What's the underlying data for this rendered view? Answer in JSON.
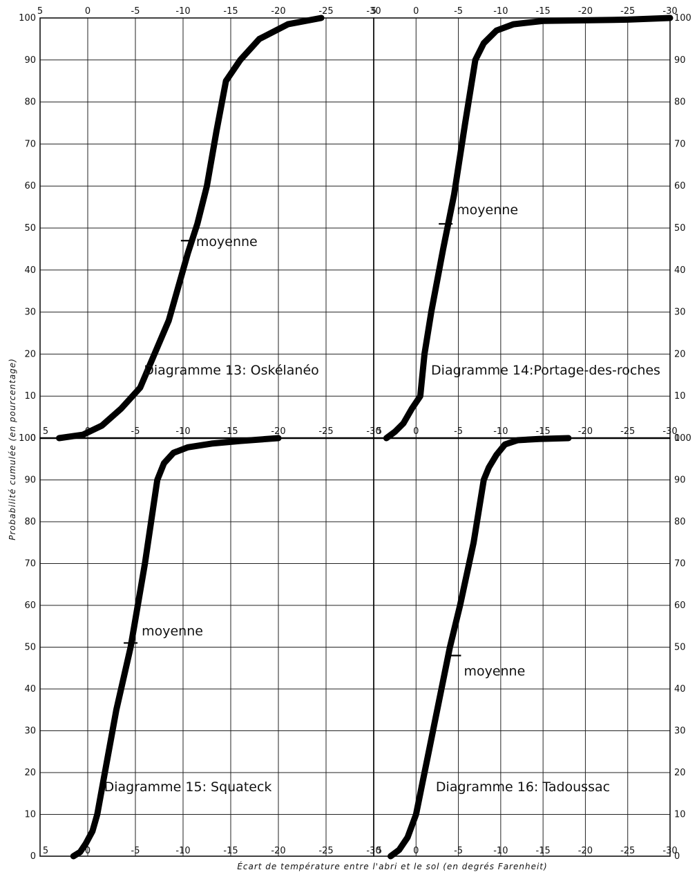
{
  "axis_labels": {
    "y": "Probabilité cumulée (en pourcentage)",
    "x": "Écart de température entre l'abri et le sol (en degrés Farenheit)"
  },
  "chart_data": [
    {
      "type": "line",
      "title": "Diagramme 13: Oskélanéo",
      "annotation": "moyenne",
      "mean": {
        "x": -10.5,
        "y": 47
      },
      "xlim": [
        5,
        -30
      ],
      "ylim": [
        0,
        100
      ],
      "x_ticks": [
        "5",
        "0",
        "-5",
        "-10",
        "-15",
        "-20",
        "-25",
        "-30"
      ],
      "y_ticks": [
        "0",
        "10",
        "20",
        "30",
        "40",
        "50",
        "60",
        "70",
        "80",
        "90",
        "100"
      ],
      "grid": true,
      "series": [
        {
          "x": [
            3,
            0.5,
            -1.5,
            -3.5,
            -5.5,
            -7,
            -8.5,
            -9.5,
            -10.5,
            -11.5,
            -12.5,
            -13.5,
            -14.5,
            -16,
            -18,
            -21,
            -24.5
          ],
          "y": [
            0,
            0.8,
            3,
            7,
            12,
            20,
            28,
            36,
            44,
            51,
            60,
            73,
            85,
            90,
            95,
            98.5,
            100
          ]
        }
      ]
    },
    {
      "type": "line",
      "title": "Diagramme 14:Portage-des-roches",
      "annotation": "moyenne",
      "mean": {
        "x": -3.5,
        "y": 51
      },
      "xlim": [
        5,
        -30
      ],
      "ylim": [
        0,
        100
      ],
      "x_ticks": [
        "5",
        "0",
        "-5",
        "-10",
        "-15",
        "-20",
        "-25",
        "-30"
      ],
      "y_ticks": [
        "0",
        "10",
        "20",
        "30",
        "40",
        "50",
        "60",
        "70",
        "80",
        "90",
        "100"
      ],
      "grid": true,
      "series": [
        {
          "x": [
            3.5,
            2.5,
            1.5,
            0.5,
            -0.5,
            -1,
            -1.8,
            -3.2,
            -4.5,
            -5.8,
            -7,
            -8,
            -9.5,
            -11.5,
            -15,
            -25,
            -30
          ],
          "y": [
            0,
            1.5,
            3.5,
            7,
            10,
            20,
            30,
            45,
            58,
            75,
            90,
            94,
            97,
            98.5,
            99.3,
            99.6,
            100
          ]
        }
      ]
    },
    {
      "type": "line",
      "title": "Diagramme 15: Squateck",
      "annotation": "moyenne",
      "mean": {
        "x": -4.5,
        "y": 51
      },
      "xlim": [
        5,
        -30
      ],
      "ylim": [
        0,
        100
      ],
      "x_ticks": [
        "5",
        "0",
        "-5",
        "-10",
        "-15",
        "-20",
        "-25",
        "-30"
      ],
      "y_ticks": [
        "0",
        "10",
        "20",
        "30",
        "40",
        "50",
        "60",
        "70",
        "80",
        "90",
        "100"
      ],
      "grid": true,
      "series": [
        {
          "x": [
            1.5,
            0.8,
            0.2,
            -0.5,
            -1,
            -1.8,
            -3,
            -4.5,
            -6,
            -7.3,
            -8,
            -9,
            -10.5,
            -13,
            -16,
            -20
          ],
          "y": [
            0,
            1,
            3,
            6,
            10,
            20,
            35,
            50,
            70,
            90,
            94,
            96.5,
            97.8,
            98.7,
            99.3,
            100
          ]
        }
      ]
    },
    {
      "type": "line",
      "title": "Diagramme 16: Tadoussac",
      "annotation": "moyenne",
      "mean": {
        "x": -4.5,
        "y": 48
      },
      "xlim": [
        5,
        -30
      ],
      "ylim": [
        0,
        100
      ],
      "x_ticks": [
        "5",
        "0",
        "-5",
        "-10",
        "-15",
        "-20",
        "-25",
        "-30"
      ],
      "y_ticks": [
        "0",
        "10",
        "20",
        "30",
        "40",
        "50",
        "60",
        "70",
        "80",
        "90",
        "100"
      ],
      "grid": true,
      "series": [
        {
          "x": [
            3,
            2,
            1,
            0,
            -0.5,
            -1.5,
            -2.8,
            -4,
            -5.2,
            -6.8,
            -8,
            -8.6,
            -9.5,
            -10.5,
            -12,
            -14.5,
            -18
          ],
          "y": [
            0,
            1.5,
            4.5,
            10,
            15,
            25,
            38,
            50,
            60,
            75,
            90,
            93,
            96,
            98.5,
            99.5,
            99.8,
            100
          ]
        }
      ]
    }
  ]
}
